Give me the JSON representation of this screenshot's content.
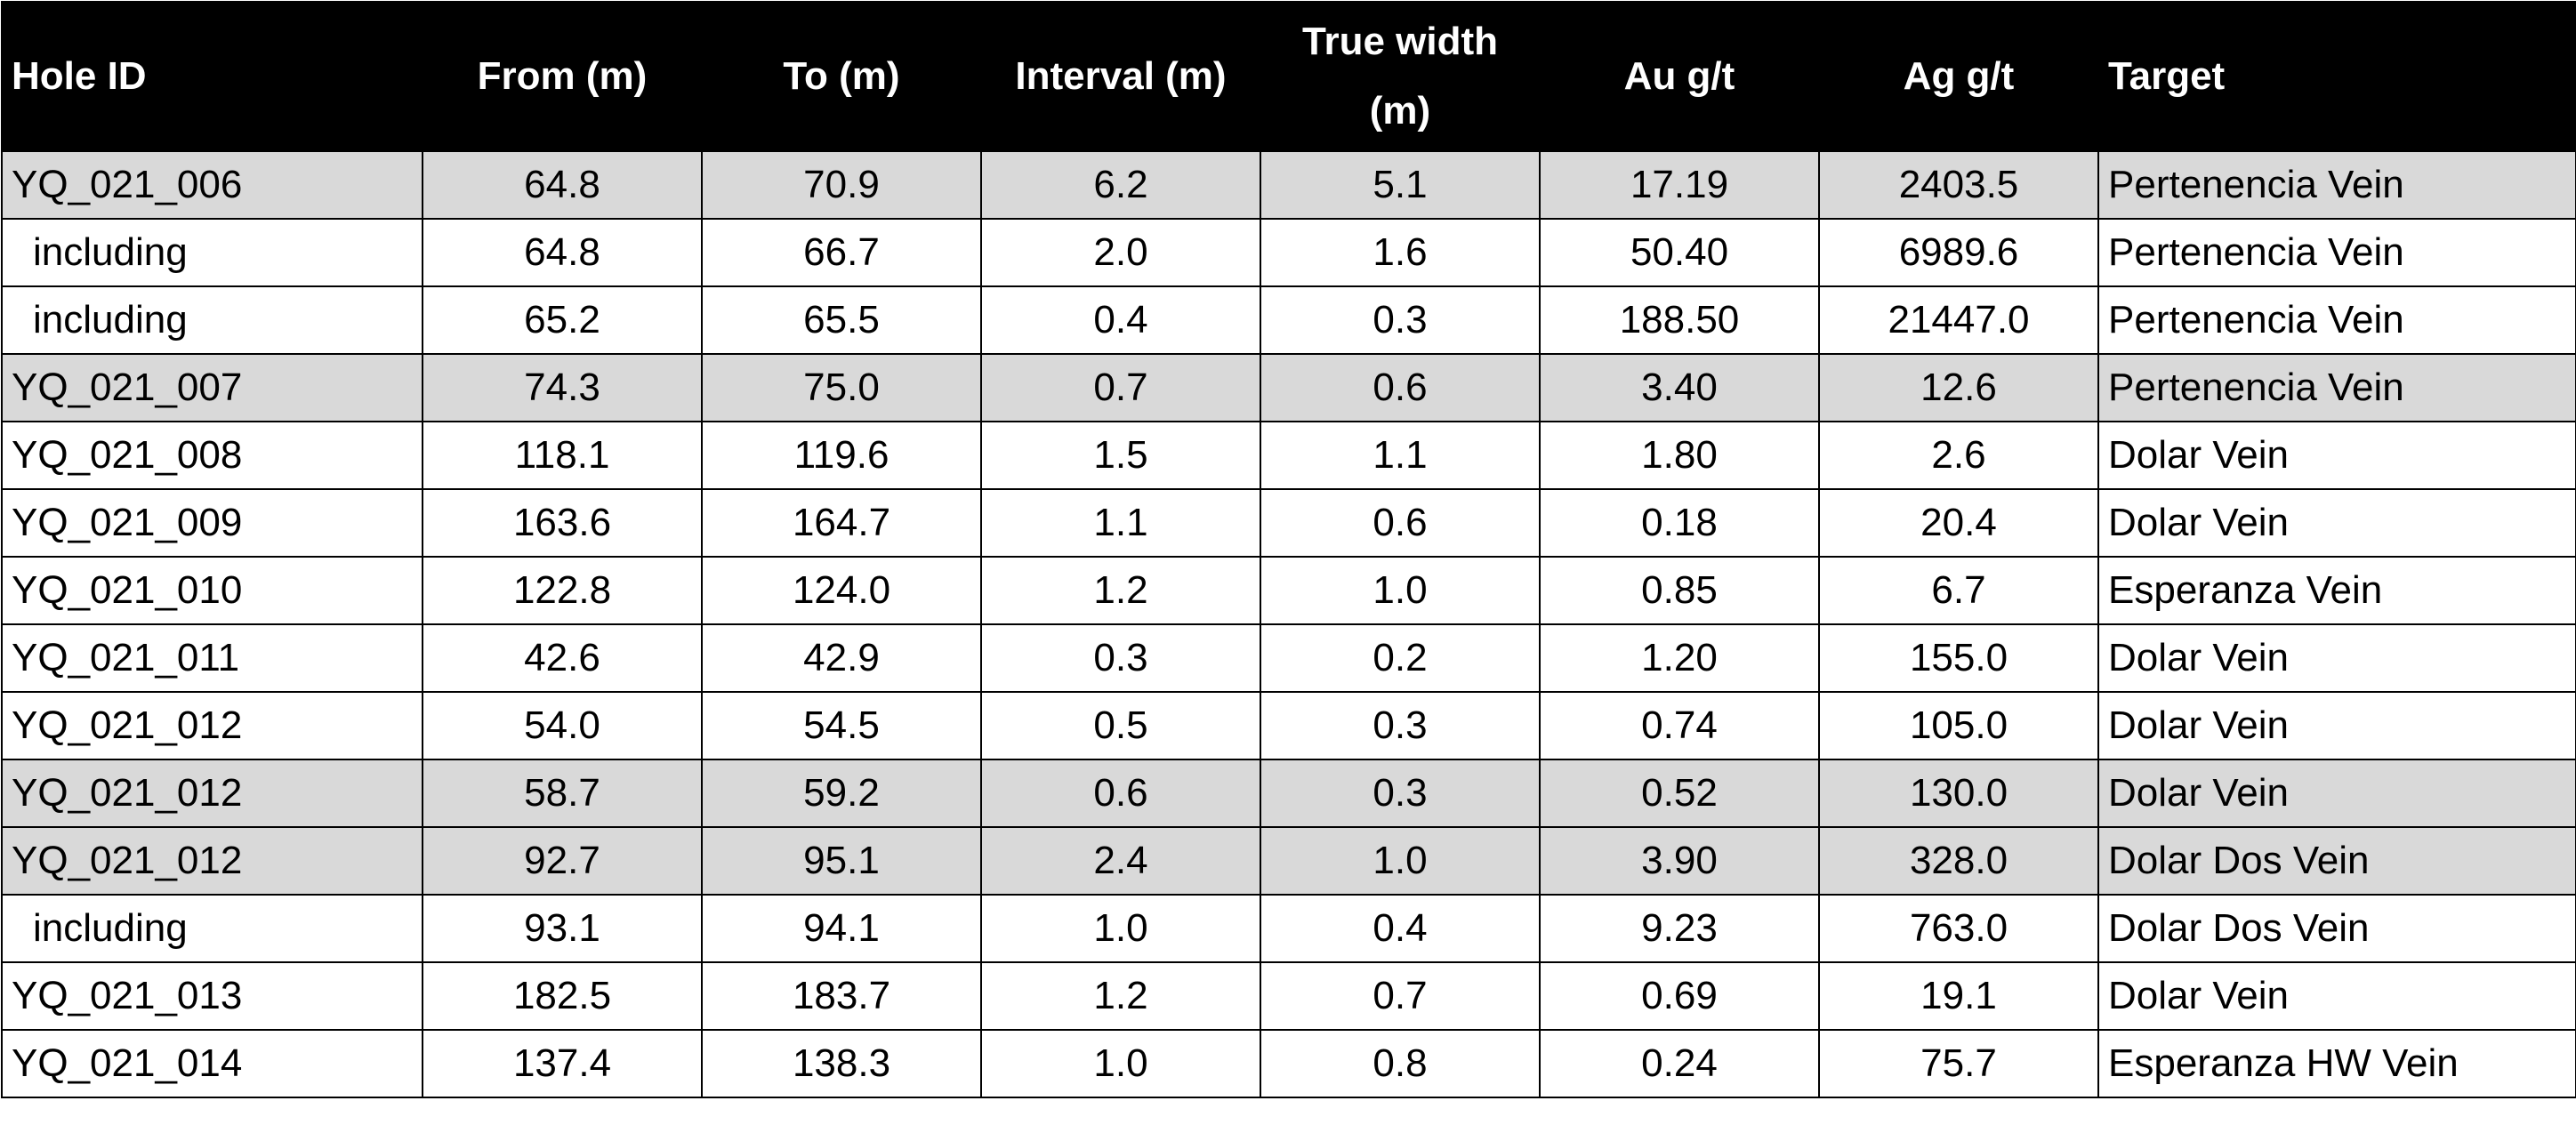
{
  "table": {
    "header": [
      "Hole ID",
      "From (m)",
      "To (m)",
      "Interval (m)",
      "True width (m)",
      "Au g/t",
      "Ag g/t",
      "Target"
    ],
    "rows": [
      [
        "YQ_021_006",
        "64.8",
        "70.9",
        "6.2",
        "5.1",
        "17.19",
        "2403.5",
        "Pertenencia Vein"
      ],
      [
        "including",
        "64.8",
        "66.7",
        "2.0",
        "1.6",
        "50.40",
        "6989.6",
        "Pertenencia Vein"
      ],
      [
        "including",
        "65.2",
        "65.5",
        "0.4",
        "0.3",
        "188.50",
        "21447.0",
        "Pertenencia Vein"
      ],
      [
        "YQ_021_007",
        "74.3",
        "75.0",
        "0.7",
        "0.6",
        "3.40",
        "12.6",
        "Pertenencia Vein"
      ],
      [
        "YQ_021_008",
        "118.1",
        "119.6",
        "1.5",
        "1.1",
        "1.80",
        "2.6",
        "Dolar Vein"
      ],
      [
        "YQ_021_009",
        "163.6",
        "164.7",
        "1.1",
        "0.6",
        "0.18",
        "20.4",
        "Dolar Vein"
      ],
      [
        "YQ_021_010",
        "122.8",
        "124.0",
        "1.2",
        "1.0",
        "0.85",
        "6.7",
        "Esperanza Vein"
      ],
      [
        "YQ_021_011",
        "42.6",
        "42.9",
        "0.3",
        "0.2",
        "1.20",
        "155.0",
        "Dolar Vein"
      ],
      [
        "YQ_021_012",
        "54.0",
        "54.5",
        "0.5",
        "0.3",
        "0.74",
        "105.0",
        "Dolar Vein"
      ],
      [
        "YQ_021_012",
        "58.7",
        "59.2",
        "0.6",
        "0.3",
        "0.52",
        "130.0",
        "Dolar Vein"
      ],
      [
        "YQ_021_012",
        "92.7",
        "95.1",
        "2.4",
        "1.0",
        "3.90",
        "328.0",
        "Dolar Dos Vein"
      ],
      [
        "including",
        "93.1",
        "94.1",
        "1.0",
        "0.4",
        "9.23",
        "763.0",
        "Dolar Dos Vein"
      ],
      [
        "YQ_021_013",
        "182.5",
        "183.7",
        "1.2",
        "0.7",
        "0.69",
        "19.1",
        "Dolar Vein"
      ],
      [
        "YQ_021_014",
        "137.4",
        "138.3",
        "1.0",
        "0.8",
        "0.24",
        "75.7",
        "Esperanza HW Vein"
      ]
    ]
  }
}
